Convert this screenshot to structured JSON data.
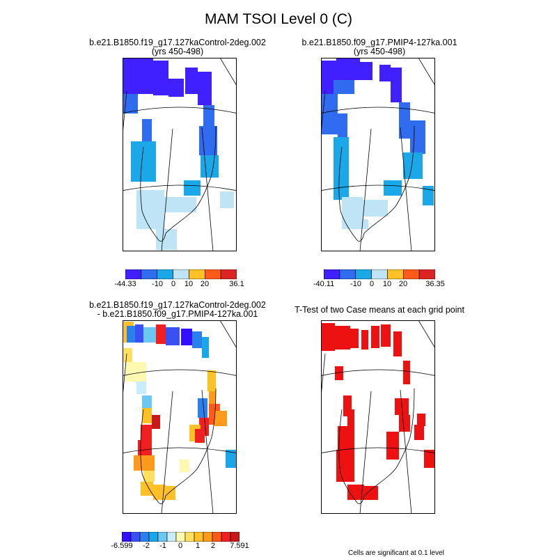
{
  "figure": {
    "title": "MAM TSOI Level 0 (C)"
  },
  "panels": [
    {
      "id": "case1",
      "title_line1": "b.e21.B1850.f19_g17.127kaControl-2deg.002",
      "title_line2": "(yrs 450-498)",
      "colorbar": {
        "colors": [
          "#4020ff",
          "#2f6cf0",
          "#1aa8e8",
          "#bfe4f5",
          "#ffc125",
          "#ff5a1a",
          "#dd2424"
        ],
        "tick_labels": [
          "-44.33",
          "-10",
          "0",
          "10",
          "20",
          "36.1"
        ]
      }
    },
    {
      "id": "case2",
      "title_line1": "b.e21.B1850.f09_g17.PMIP4-127ka.001",
      "title_line2": "(yrs 450-498)",
      "colorbar": {
        "colors": [
          "#4020ff",
          "#2f6cf0",
          "#1aa8e8",
          "#bfe4f5",
          "#ffc125",
          "#ff5a1a",
          "#dd2424"
        ],
        "tick_labels": [
          "-40.11",
          "-10",
          "0",
          "10",
          "20",
          "36.35"
        ]
      }
    },
    {
      "id": "diff",
      "title_line1": "b.e21.B1850.f19_g17.127kaControl-2deg.002",
      "title_line2": "- b.e21.B1850.f09_g17.PMIP4-127ka.001",
      "colorbar": {
        "colors": [
          "#3010ff",
          "#3a50f5",
          "#2c80ee",
          "#1ca6ea",
          "#6cc8f2",
          "#c8ecf8",
          "#fff8b0",
          "#ffe060",
          "#ffc125",
          "#ff9a1a",
          "#ff5a1a",
          "#f02020",
          "#c81818"
        ],
        "tick_labels": [
          "-6.599",
          "-2",
          "-1",
          "0",
          "1",
          "2",
          "7.591"
        ]
      }
    },
    {
      "id": "ttest",
      "title_line1": "T-Test of two Case means at each grid point",
      "title_line2": "",
      "note": "Cells are significant at 0.1 level"
    }
  ]
}
